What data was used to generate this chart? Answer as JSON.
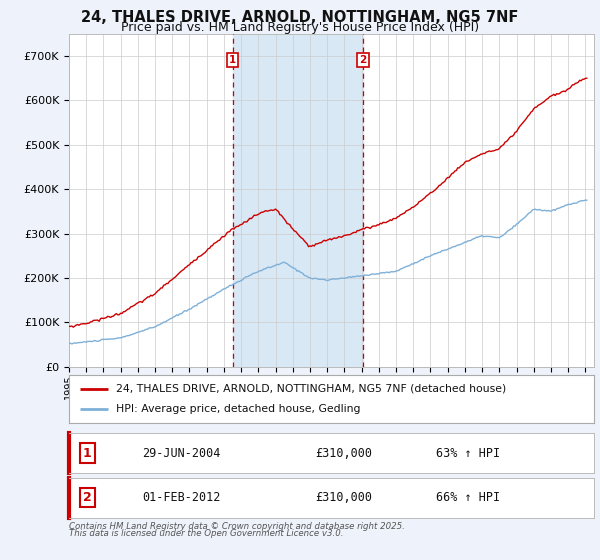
{
  "title1": "24, THALES DRIVE, ARNOLD, NOTTINGHAM, NG5 7NF",
  "title2": "Price paid vs. HM Land Registry's House Price Index (HPI)",
  "ylim": [
    0,
    750000
  ],
  "yticks": [
    0,
    100000,
    200000,
    300000,
    400000,
    500000,
    600000,
    700000
  ],
  "ytick_labels": [
    "£0",
    "£100K",
    "£200K",
    "£300K",
    "£400K",
    "£500K",
    "£600K",
    "£700K"
  ],
  "sale1_x": 2004.5,
  "sale1_price": 310000,
  "sale1_date_str": "29-JUN-2004",
  "sale1_pct": "63%",
  "sale2_x": 2012.083,
  "sale2_price": 310000,
  "sale2_date_str": "01-FEB-2012",
  "sale2_pct": "66%",
  "red_color": "#cc0000",
  "blue_color": "#7fb0d8",
  "legend1": "24, THALES DRIVE, ARNOLD, NOTTINGHAM, NG5 7NF (detached house)",
  "legend2": "HPI: Average price, detached house, Gedling",
  "footnote1": "Contains HM Land Registry data © Crown copyright and database right 2025.",
  "footnote2": "This data is licensed under the Open Government Licence v3.0.",
  "bg_color": "#eef2fa",
  "plot_bg": "#ffffff",
  "shade_color": "#d8e8f5",
  "grid_color": "#cccccc",
  "title_fontsize": 10.5,
  "subtitle_fontsize": 9
}
